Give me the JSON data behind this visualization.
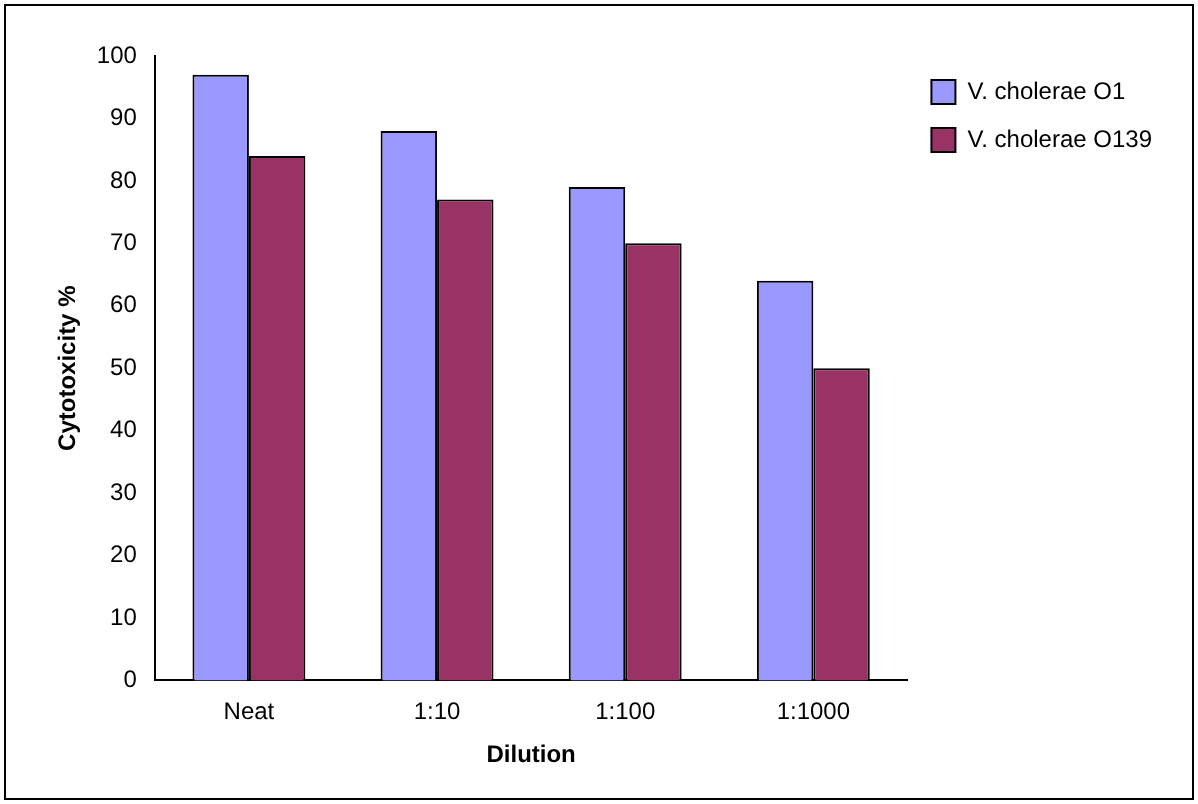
{
  "chart_data": {
    "type": "bar",
    "xlabel": "Dilution",
    "ylabel": "Cytotoxicity %",
    "categories": [
      "Neat",
      "1:10",
      "1:100",
      "1:1000"
    ],
    "series": [
      {
        "name": "V. cholerae O1",
        "color": "#9999ff",
        "values": [
          97,
          88,
          79,
          64
        ]
      },
      {
        "name": "V. cholerae O139",
        "color": "#993366",
        "values": [
          84,
          77,
          70,
          50
        ]
      }
    ],
    "ylim": [
      0,
      100
    ],
    "yticks": [
      0,
      10,
      20,
      30,
      40,
      50,
      60,
      70,
      80,
      90,
      100
    ],
    "grid": false,
    "legend": "right"
  }
}
